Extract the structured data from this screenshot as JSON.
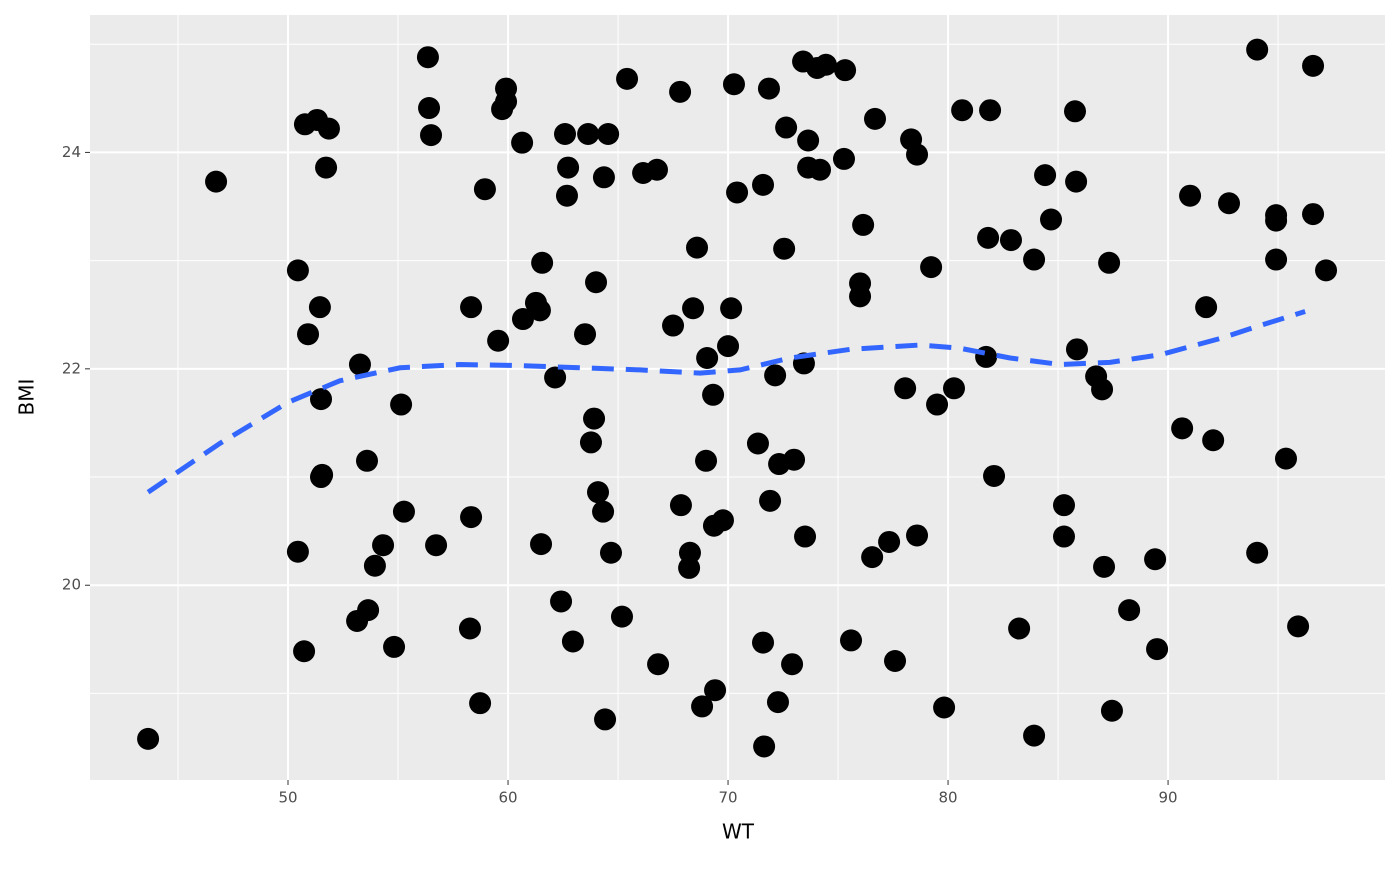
{
  "chart_data": {
    "type": "scatter",
    "x_label": "WT",
    "y_label": "BMI",
    "xlim": [
      41.0,
      99.86
    ],
    "ylim": [
      18.2,
      25.27
    ],
    "xticks": [
      50,
      60,
      70,
      80,
      90
    ],
    "yticks": [
      20,
      22,
      24
    ],
    "grid": true,
    "point_color": "#000000",
    "x": [
      43.64,
      46.73,
      50.45,
      50.45,
      50.73,
      50.77,
      51.32,
      51.86,
      51.73,
      50.91,
      51.45,
      51.5,
      51.55,
      51.5,
      53.27,
      53.59,
      53.14,
      53.64,
      53.95,
      54.32,
      54.82,
      55.14,
      55.27,
      56.36,
      56.41,
      56.5,
      56.73,
      58.32,
      58.32,
      58.27,
      58.73,
      58.95,
      59.55,
      59.73,
      59.91,
      59.91,
      60.64,
      60.68,
      61.27,
      61.45,
      61.55,
      61.5,
      62.14,
      62.41,
      62.59,
      62.73,
      62.68,
      62.95,
      63.5,
      63.64,
      63.77,
      63.91,
      64.0,
      64.09,
      64.32,
      64.36,
      64.55,
      64.68,
      64.41,
      65.18,
      65.41,
      66.14,
      66.77,
      66.82,
      67.5,
      67.82,
      67.86,
      68.23,
      68.27,
      68.41,
      68.59,
      68.82,
      69.05,
      69.0,
      69.32,
      69.36,
      69.41,
      69.77,
      70.0,
      70.14,
      70.27,
      70.41,
      71.36,
      71.59,
      71.59,
      71.64,
      71.86,
      71.91,
      72.14,
      72.32,
      72.27,
      72.55,
      72.64,
      72.91,
      73.0,
      73.41,
      73.45,
      73.5,
      73.64,
      73.64,
      74.05,
      74.18,
      74.45,
      75.27,
      75.32,
      75.59,
      76.14,
      76.0,
      76.0,
      76.55,
      76.68,
      77.32,
      77.59,
      78.05,
      78.32,
      78.59,
      78.59,
      79.23,
      79.5,
      79.82,
      80.27,
      80.64,
      81.73,
      81.82,
      81.91,
      82.09,
      82.86,
      83.23,
      83.91,
      83.91,
      84.41,
      84.68,
      85.27,
      85.27,
      85.77,
      85.82,
      85.86,
      86.73,
      87.0,
      87.09,
      87.32,
      87.45,
      88.23,
      89.41,
      89.5,
      90.64,
      91.0,
      91.73,
      92.05,
      92.77,
      94.05,
      94.05,
      94.91,
      94.91,
      94.91,
      95.36,
      95.91,
      96.59,
      96.59,
      97.18
    ],
    "y": [
      18.58,
      23.73,
      22.91,
      20.31,
      19.39,
      24.26,
      24.3,
      24.22,
      23.86,
      22.32,
      22.57,
      21.72,
      21.02,
      21.0,
      22.04,
      21.15,
      19.67,
      19.77,
      20.18,
      20.37,
      19.43,
      21.67,
      20.68,
      24.88,
      24.41,
      24.16,
      20.37,
      22.57,
      20.63,
      19.6,
      18.91,
      23.66,
      22.26,
      24.4,
      24.59,
      24.47,
      24.09,
      22.46,
      22.61,
      22.54,
      22.98,
      20.38,
      21.92,
      19.85,
      24.17,
      23.86,
      23.6,
      19.48,
      22.32,
      24.17,
      21.32,
      21.54,
      22.8,
      20.86,
      20.68,
      23.77,
      24.17,
      20.3,
      18.76,
      19.71,
      24.68,
      23.81,
      23.84,
      19.27,
      22.4,
      24.56,
      20.74,
      20.16,
      20.3,
      22.56,
      23.12,
      18.88,
      22.1,
      21.15,
      21.76,
      20.55,
      19.03,
      20.6,
      22.21,
      22.56,
      24.63,
      23.63,
      21.31,
      23.7,
      19.47,
      18.51,
      24.59,
      20.78,
      21.94,
      21.12,
      18.92,
      23.11,
      24.23,
      19.27,
      21.16,
      24.84,
      22.05,
      20.45,
      24.11,
      23.86,
      24.78,
      23.84,
      24.81,
      23.94,
      24.76,
      19.49,
      23.33,
      22.79,
      22.67,
      20.26,
      24.31,
      20.4,
      19.3,
      21.82,
      24.12,
      23.98,
      20.46,
      22.94,
      21.67,
      18.87,
      21.82,
      24.39,
      22.11,
      23.21,
      24.39,
      21.01,
      23.19,
      19.6,
      23.01,
      18.61,
      23.79,
      23.38,
      20.74,
      20.45,
      24.38,
      23.73,
      22.18,
      21.93,
      21.81,
      20.17,
      22.98,
      18.84,
      19.77,
      20.24,
      19.41,
      21.45,
      23.6,
      22.57,
      21.34,
      23.53,
      24.95,
      20.3,
      23.42,
      23.37,
      23.01,
      21.17,
      19.62,
      24.8,
      23.43,
      22.91
    ],
    "smooth": {
      "color": "#3366ff",
      "x": [
        43.64,
        46.9,
        50.0,
        52.36,
        55.09,
        57.82,
        60.55,
        63.27,
        66.0,
        68.73,
        70.55,
        72.82,
        75.55,
        78.73,
        80.55,
        82.82,
        85.09,
        87.36,
        89.64,
        92.36,
        94.18,
        96.23
      ],
      "y": [
        20.86,
        21.31,
        21.69,
        21.89,
        22.01,
        22.04,
        22.03,
        22.01,
        21.99,
        21.96,
        21.99,
        22.1,
        22.18,
        22.22,
        22.19,
        22.1,
        22.04,
        22.06,
        22.13,
        22.28,
        22.4,
        22.53
      ]
    }
  }
}
